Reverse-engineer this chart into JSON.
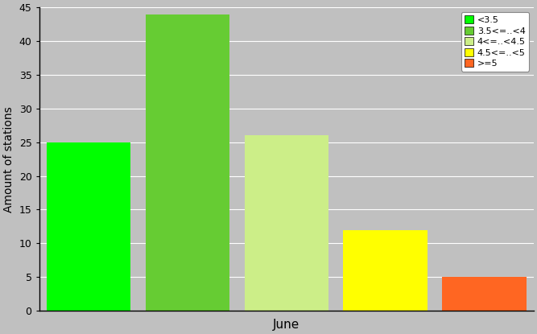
{
  "bars": [
    {
      "label": "<3.5",
      "value": 25,
      "color": "#00FF00"
    },
    {
      "label": "3.5<=..<4",
      "value": 44,
      "color": "#66CC33"
    },
    {
      "label": "4<=..<4.5",
      "value": 26,
      "color": "#CCEE88"
    },
    {
      "label": "4.5<=..<5",
      "value": 12,
      "color": "#FFFF00"
    },
    {
      "label": ">=5",
      "value": 5,
      "color": "#FF6622"
    }
  ],
  "ylabel": "Amount of stations",
  "xlabel": "June",
  "ylim": [
    0,
    45
  ],
  "yticks": [
    0,
    5,
    10,
    15,
    20,
    25,
    30,
    35,
    40,
    45
  ],
  "background_color": "#C0C0C0",
  "plot_area_color": "#C0C0C0",
  "grid_color": "#FFFFFF",
  "legend_labels": [
    "<3.5",
    "3.5<=..<4",
    "4<=..<4.5",
    "4.5<=..<5",
    ">=5"
  ],
  "legend_colors": [
    "#00FF00",
    "#66CC33",
    "#CCEE88",
    "#FFFF00",
    "#FF6622"
  ]
}
